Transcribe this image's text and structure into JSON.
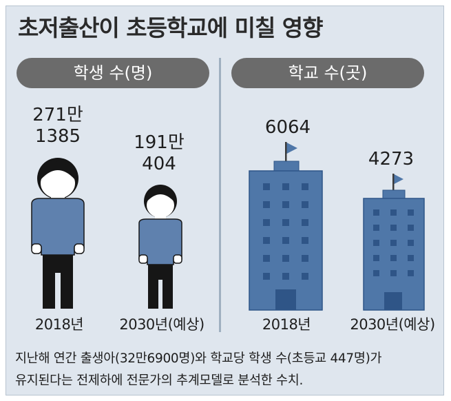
{
  "title": "초저출산이 초등학교에 미칠 영향",
  "panels": {
    "students": {
      "header": "학생 수(명)",
      "items": [
        {
          "year": "2018년",
          "value_line1": "271만",
          "value_line2": "1385",
          "value": 2711385
        },
        {
          "year": "2030년(예상)",
          "value_line1": "191만",
          "value_line2": "404",
          "value": 1910404
        }
      ]
    },
    "schools": {
      "header": "학교 수(곳)",
      "items": [
        {
          "year": "2018년",
          "value_label": "6064",
          "value": 6064
        },
        {
          "year": "2030년(예상)",
          "value_label": "4273",
          "value": 4273
        }
      ]
    }
  },
  "footnote": {
    "line1": "지난해 연간 출생아(32만6900명)와 학교당 학생 수(초등교 447명)가",
    "line2": "유지된다는 전제하에 전문가의 추계모델로 분석한 수치."
  },
  "colors": {
    "background": "#dfe6ee",
    "pill": "#6b6b6b",
    "figure_shirt": "#5f81ae",
    "figure_dark": "#161616",
    "building": "#4f77a8",
    "window": "#2f5587"
  },
  "icons": [
    "student-figure-icon",
    "school-building-icon",
    "flag-icon"
  ]
}
